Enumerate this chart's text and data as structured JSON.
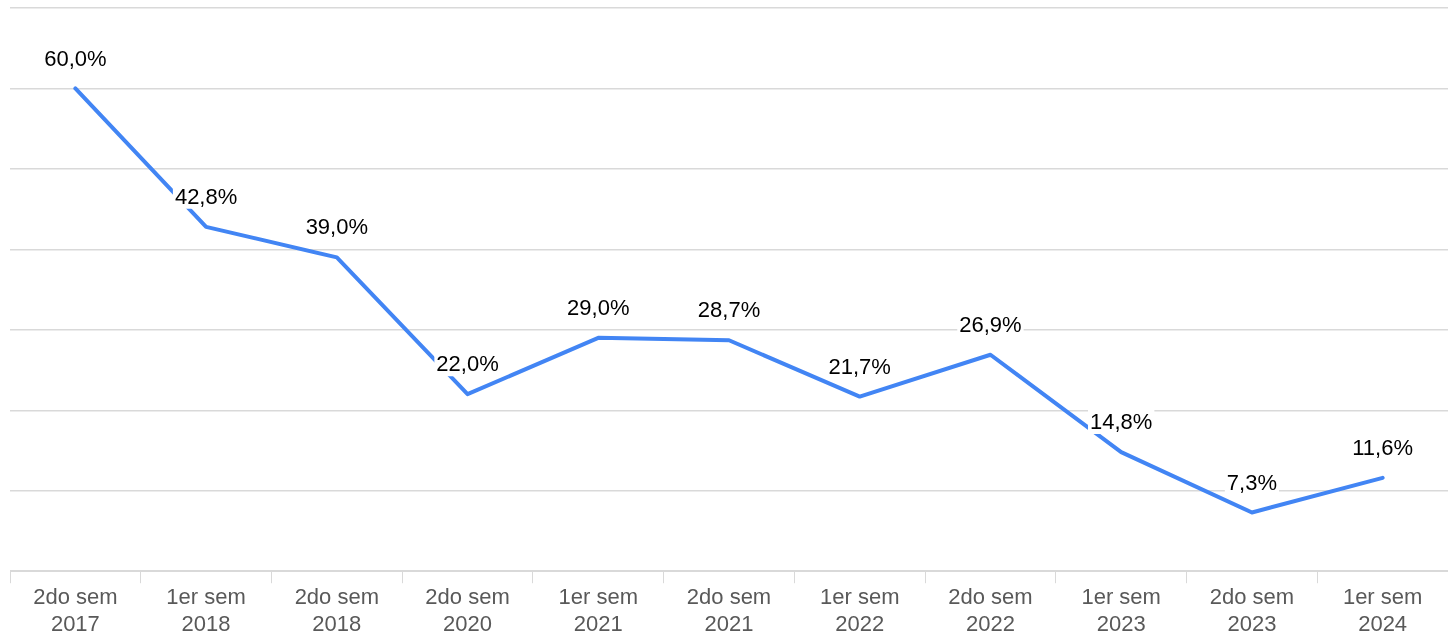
{
  "chart_data": {
    "type": "line",
    "categories": [
      "2do sem 2017",
      "1er sem 2018",
      "2do sem 2018",
      "2do sem 2020",
      "1er sem 2021",
      "2do sem 2021",
      "1er sem 2022",
      "2do sem 2022",
      "1er sem 2023",
      "2do sem 2023",
      "1er sem 2024"
    ],
    "series": [
      {
        "color": "#4285f4",
        "values": [
          60.0,
          42.8,
          39.0,
          22.0,
          29.0,
          28.7,
          21.7,
          26.9,
          14.8,
          7.3,
          11.6
        ],
        "value_labels": [
          "60,0%",
          "42,8%",
          "39,0%",
          "22,0%",
          "29,0%",
          "28,7%",
          "21,7%",
          "26,9%",
          "14,8%",
          "7,3%",
          "11,6%"
        ]
      }
    ],
    "ylim": [
      0,
      70
    ],
    "yticks": [
      {
        "value": 0,
        "label": null
      },
      {
        "value": 10,
        "label": null
      },
      {
        "value": 20,
        "label": null
      },
      {
        "value": 30,
        "label": null
      },
      {
        "value": 40,
        "label": null
      },
      {
        "value": 50,
        "label": null
      },
      {
        "value": 60,
        "label": null
      },
      {
        "value": 70,
        "label": null
      }
    ],
    "grid": "y",
    "tick_labels": "x",
    "legend": false,
    "marker": "none",
    "line_style": "solid"
  }
}
